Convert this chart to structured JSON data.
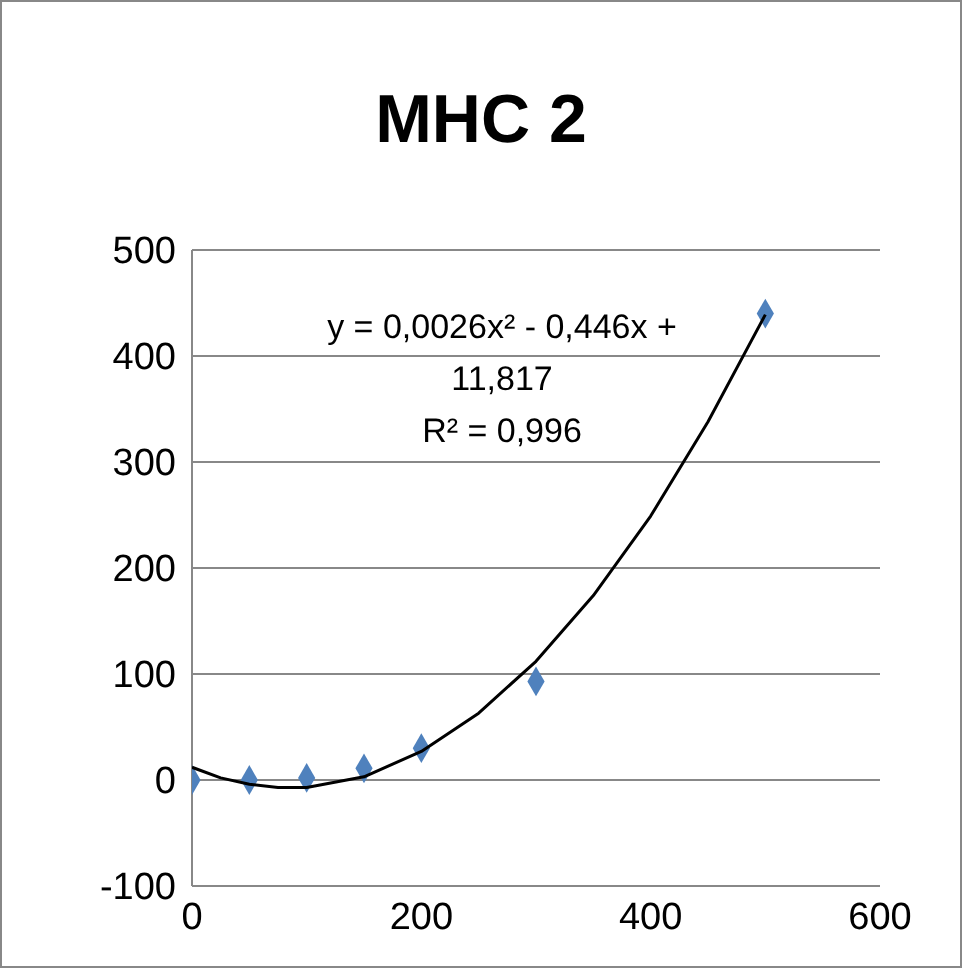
{
  "chart_data": {
    "type": "scatter",
    "title": "MHC 2",
    "annotations": [
      "y = 0,0026x² - 0,446x + 11,817",
      "R² = 0,996"
    ],
    "series": [
      {
        "color": "#4f81bd",
        "marker": "diamond",
        "x": [
          0,
          50,
          100,
          150,
          200,
          300,
          500
        ],
        "values": [
          0,
          0,
          2,
          11,
          30,
          93,
          440
        ]
      },
      {
        "type": "line",
        "color": "#000000",
        "marker": "none",
        "x": [
          0,
          25,
          50,
          75,
          100,
          150,
          200,
          250,
          300,
          350,
          400,
          450,
          500
        ],
        "values": [
          12,
          2,
          -4,
          -7,
          -7,
          3,
          27,
          63,
          112,
          174,
          249,
          338,
          439
        ]
      }
    ],
    "xlim": [
      0,
      600
    ],
    "xticks": [
      0,
      200,
      400,
      600
    ],
    "ylim": [
      -100,
      500
    ],
    "yticks": [
      -100,
      0,
      100,
      200,
      300,
      400,
      500
    ],
    "grid": "y"
  }
}
